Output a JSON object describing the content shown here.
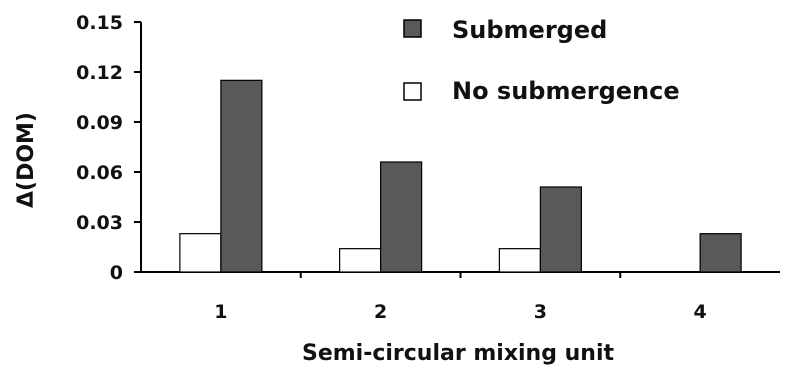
{
  "chart_data": {
    "type": "bar",
    "categories": [
      "1",
      "2",
      "3",
      "4"
    ],
    "series": [
      {
        "name": "No submergence",
        "values": [
          0.023,
          0.014,
          0.014,
          0.0
        ],
        "color": "#ffffff"
      },
      {
        "name": "Submerged",
        "values": [
          0.115,
          0.066,
          0.051,
          0.023
        ],
        "color": "#595959"
      }
    ],
    "title": "",
    "xlabel": "Semi-circular mixing unit",
    "ylabel": "Δ(DOM)",
    "ylim": [
      0,
      0.15
    ],
    "yticks": [
      "0",
      "0.03",
      "0.06",
      "0.09",
      "0.12",
      "0.15"
    ],
    "grid": false,
    "legend": {
      "placement": "top-center",
      "entries": [
        "Submerged",
        "No submergence"
      ]
    }
  }
}
